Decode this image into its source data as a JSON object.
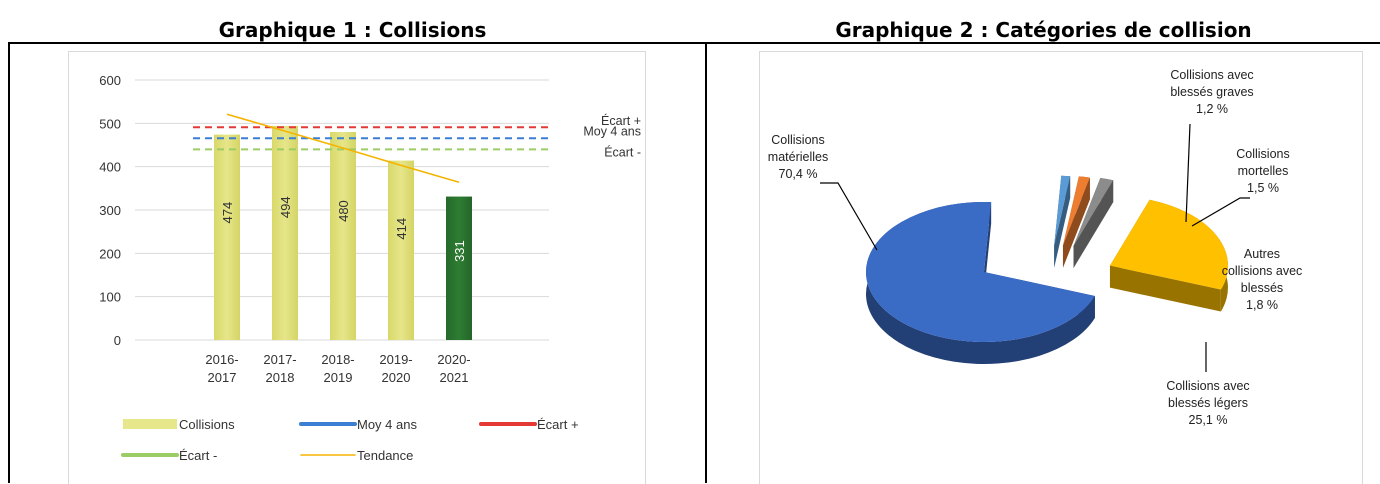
{
  "headings": {
    "chart1": "Graphique 1 : Collisions",
    "chart2": "Graphique 2 : Catégories de collision"
  },
  "chart_data": [
    {
      "type": "bar",
      "title": "Graphique 1 : Collisions",
      "categories": [
        "2016-\n2017",
        "2017-\n2018",
        "2018-\n2019",
        "2019-\n2020",
        "2020-\n2021"
      ],
      "yticks": [
        "0",
        "100",
        "200",
        "300",
        "400",
        "500",
        "600"
      ],
      "ylim": [
        0,
        600
      ],
      "grid": true,
      "series": [
        {
          "name": "Collisions",
          "type": "bar",
          "values": [
            474,
            494,
            480,
            414,
            331
          ],
          "labels": [
            "474",
            "494",
            "480",
            "414",
            "331"
          ]
        },
        {
          "name": "Moy 4 ans",
          "type": "line",
          "values": [
            465.5,
            465.5,
            465.5,
            465.5,
            465.5
          ]
        },
        {
          "name": "Écart +",
          "type": "line",
          "values": [
            491,
            491,
            491,
            491,
            491
          ]
        },
        {
          "name": "Écart -",
          "type": "line",
          "values": [
            440,
            440,
            440,
            440,
            440
          ]
        },
        {
          "name": "Tendance",
          "type": "line",
          "values": [
            521,
            482,
            443,
            403,
            364
          ]
        }
      ],
      "annotations": [
        "Écart +",
        "Moy 4 ans",
        "Écart -"
      ],
      "legend_position": "bottom",
      "colors": {
        "bars": "#e6e68a",
        "bar_highlight": "#2e7d32",
        "moy": "#3a7fd5",
        "ecart_plus": "#e53935",
        "ecart_minus": "#9ccc65",
        "tendance": "#f5b400",
        "grid": "#d9d9d9"
      }
    },
    {
      "type": "pie",
      "title": "Graphique 2 : Catégories de collision",
      "slices": [
        {
          "label": "Collisions matérielles",
          "value": 70.4,
          "value_label": "70,4 %",
          "color": "#3a6cc6"
        },
        {
          "label": "Collisions avec blessés graves",
          "value": 1.2,
          "value_label": "1,2 %",
          "color": "#5b9bd5"
        },
        {
          "label": "Collisions mortelles",
          "value": 1.5,
          "value_label": "1,5 %",
          "color": "#ed7d31"
        },
        {
          "label": "Autres collisions avec blessés",
          "value": 1.8,
          "value_label": "1,8 %",
          "color": "#8c8c8c"
        },
        {
          "label": "Collisions avec blessés légers",
          "value": 25.1,
          "value_label": "25,1 %",
          "color": "#ffc000"
        }
      ]
    }
  ]
}
